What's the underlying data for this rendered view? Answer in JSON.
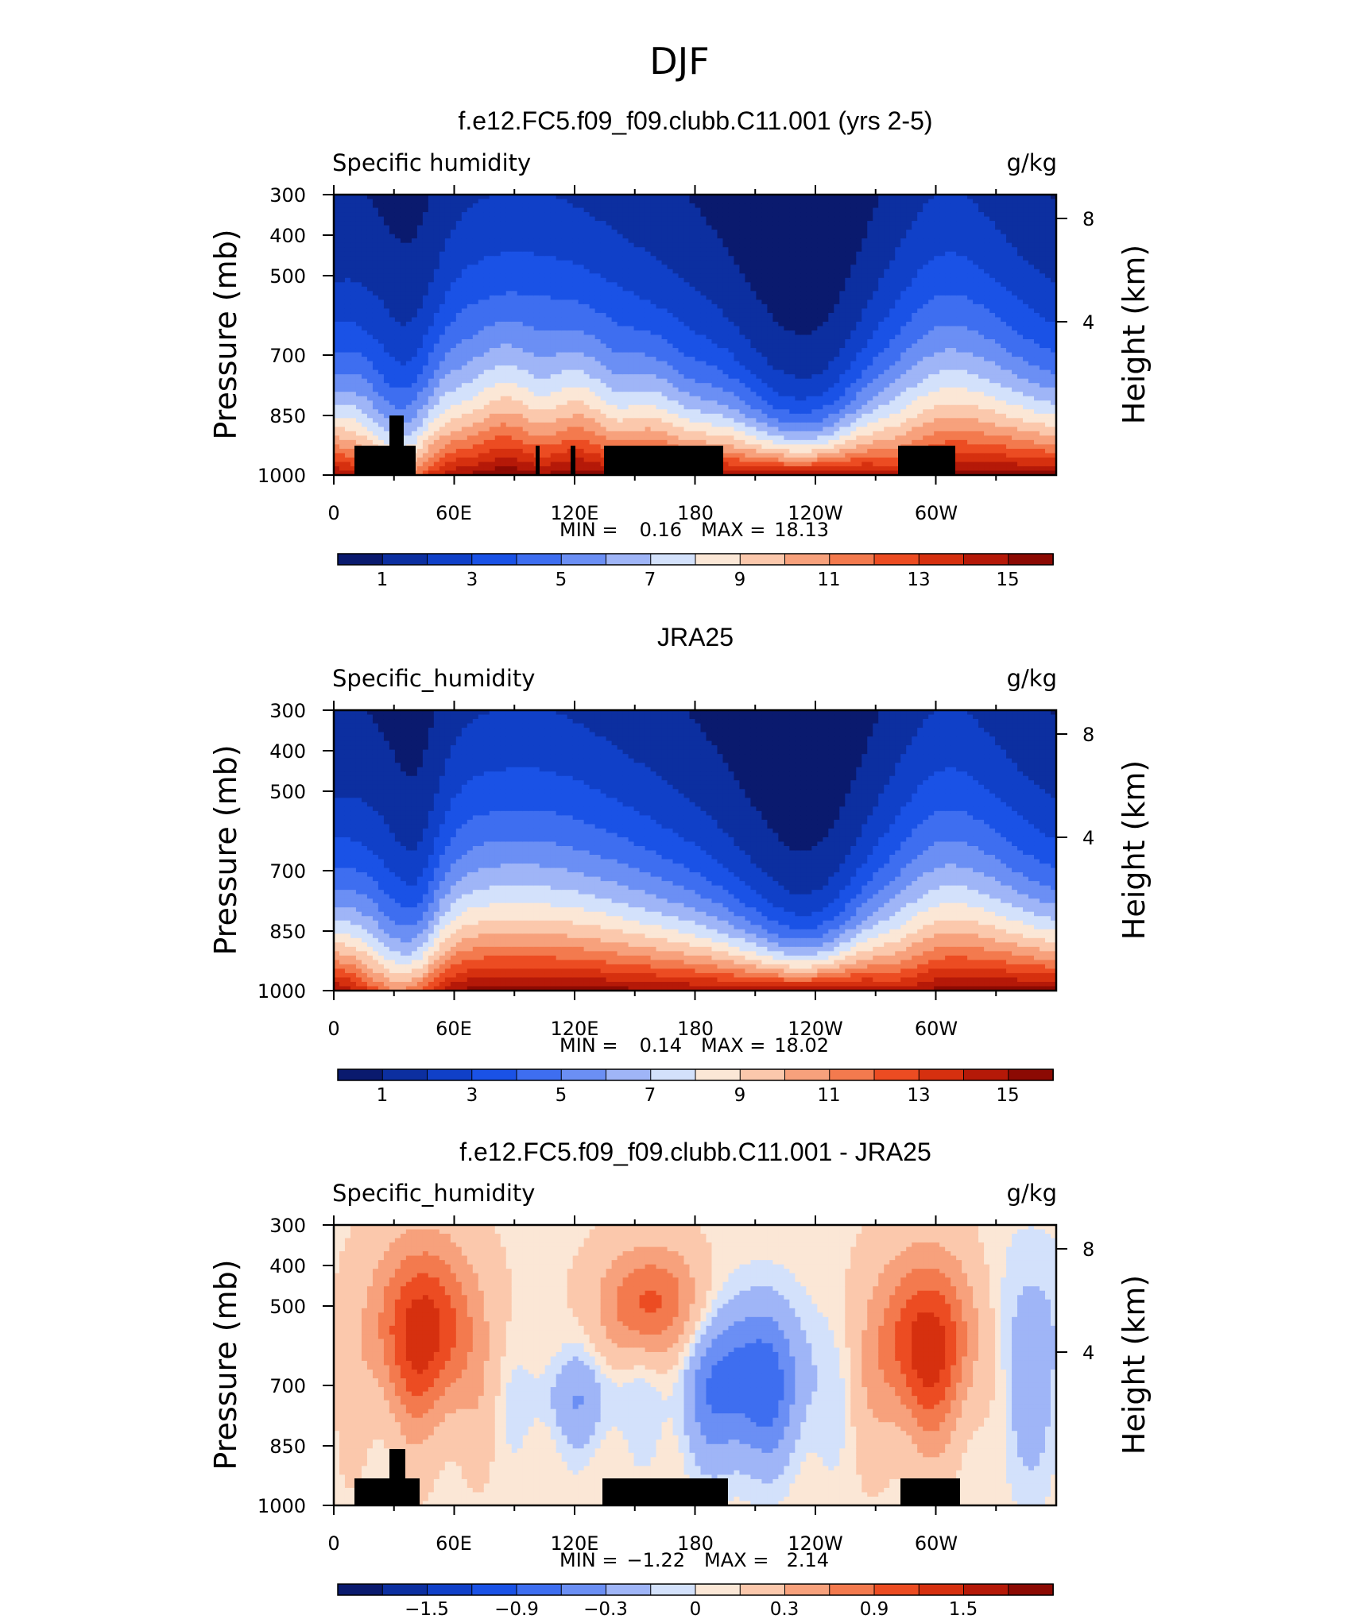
{
  "figure": {
    "title": "DJF"
  },
  "colorbar_colors": [
    "#0a1a6e",
    "#0c2fa0",
    "#1040c8",
    "#1a52e6",
    "#3e6ef0",
    "#6b8ff4",
    "#9fb5f7",
    "#d3e1fb",
    "#fbe7d6",
    "#fbc8ac",
    "#f7a17c",
    "#f37a4e",
    "#ec4c22",
    "#d6300f",
    "#b51908",
    "#8c0a03"
  ],
  "chart_data": [
    {
      "type": "heatmap",
      "title": "f.e12.FC5.f09_f09.clubb.C11.001 (yrs 2-5)",
      "field_label": "Specific humidity",
      "units": "g/kg",
      "ylabel": "Pressure (mb)",
      "y2label": "Height (km)",
      "yticks": [
        "300",
        "400",
        "500",
        "700",
        "850",
        "1000"
      ],
      "y2ticks": [
        "8",
        "4"
      ],
      "xticks": [
        "0",
        "60E",
        "120E",
        "180",
        "120W",
        "60W"
      ],
      "min_label": "MIN =",
      "min_value": "0.16",
      "max_label": "MAX =",
      "max_value": "18.13",
      "colorbar_ticks": [
        "1",
        "3",
        "5",
        "7",
        "9",
        "11",
        "13",
        "15"
      ],
      "min": 0.16,
      "max": 18.13
    },
    {
      "type": "heatmap",
      "title": "JRA25",
      "field_label": "Specific_humidity",
      "units": "g/kg",
      "ylabel": "Pressure (mb)",
      "y2label": "Height (km)",
      "yticks": [
        "300",
        "400",
        "500",
        "700",
        "850",
        "1000"
      ],
      "y2ticks": [
        "8",
        "4"
      ],
      "xticks": [
        "0",
        "60E",
        "120E",
        "180",
        "120W",
        "60W"
      ],
      "min_label": "MIN =",
      "min_value": "0.14",
      "max_label": "MAX =",
      "max_value": "18.02",
      "colorbar_ticks": [
        "1",
        "3",
        "5",
        "7",
        "9",
        "11",
        "13",
        "15"
      ],
      "min": 0.14,
      "max": 18.02
    },
    {
      "type": "heatmap",
      "title": "f.e12.FC5.f09_f09.clubb.C11.001 - JRA25",
      "field_label": "Specific_humidity",
      "units": "g/kg",
      "ylabel": "Pressure (mb)",
      "y2label": "Height (km)",
      "yticks": [
        "300",
        "400",
        "500",
        "700",
        "850",
        "1000"
      ],
      "y2ticks": [
        "8",
        "4"
      ],
      "xticks": [
        "0",
        "60E",
        "120E",
        "180",
        "120W",
        "60W"
      ],
      "min_label": "MIN =",
      "min_value": "−1.22",
      "max_label": "MAX =",
      "max_value": "2.14",
      "colorbar_ticks": [
        "−1.5",
        "−0.9",
        "−0.3",
        "0",
        "0.3",
        "0.9",
        "1.5"
      ],
      "min": -1.22,
      "max": 2.14
    }
  ]
}
